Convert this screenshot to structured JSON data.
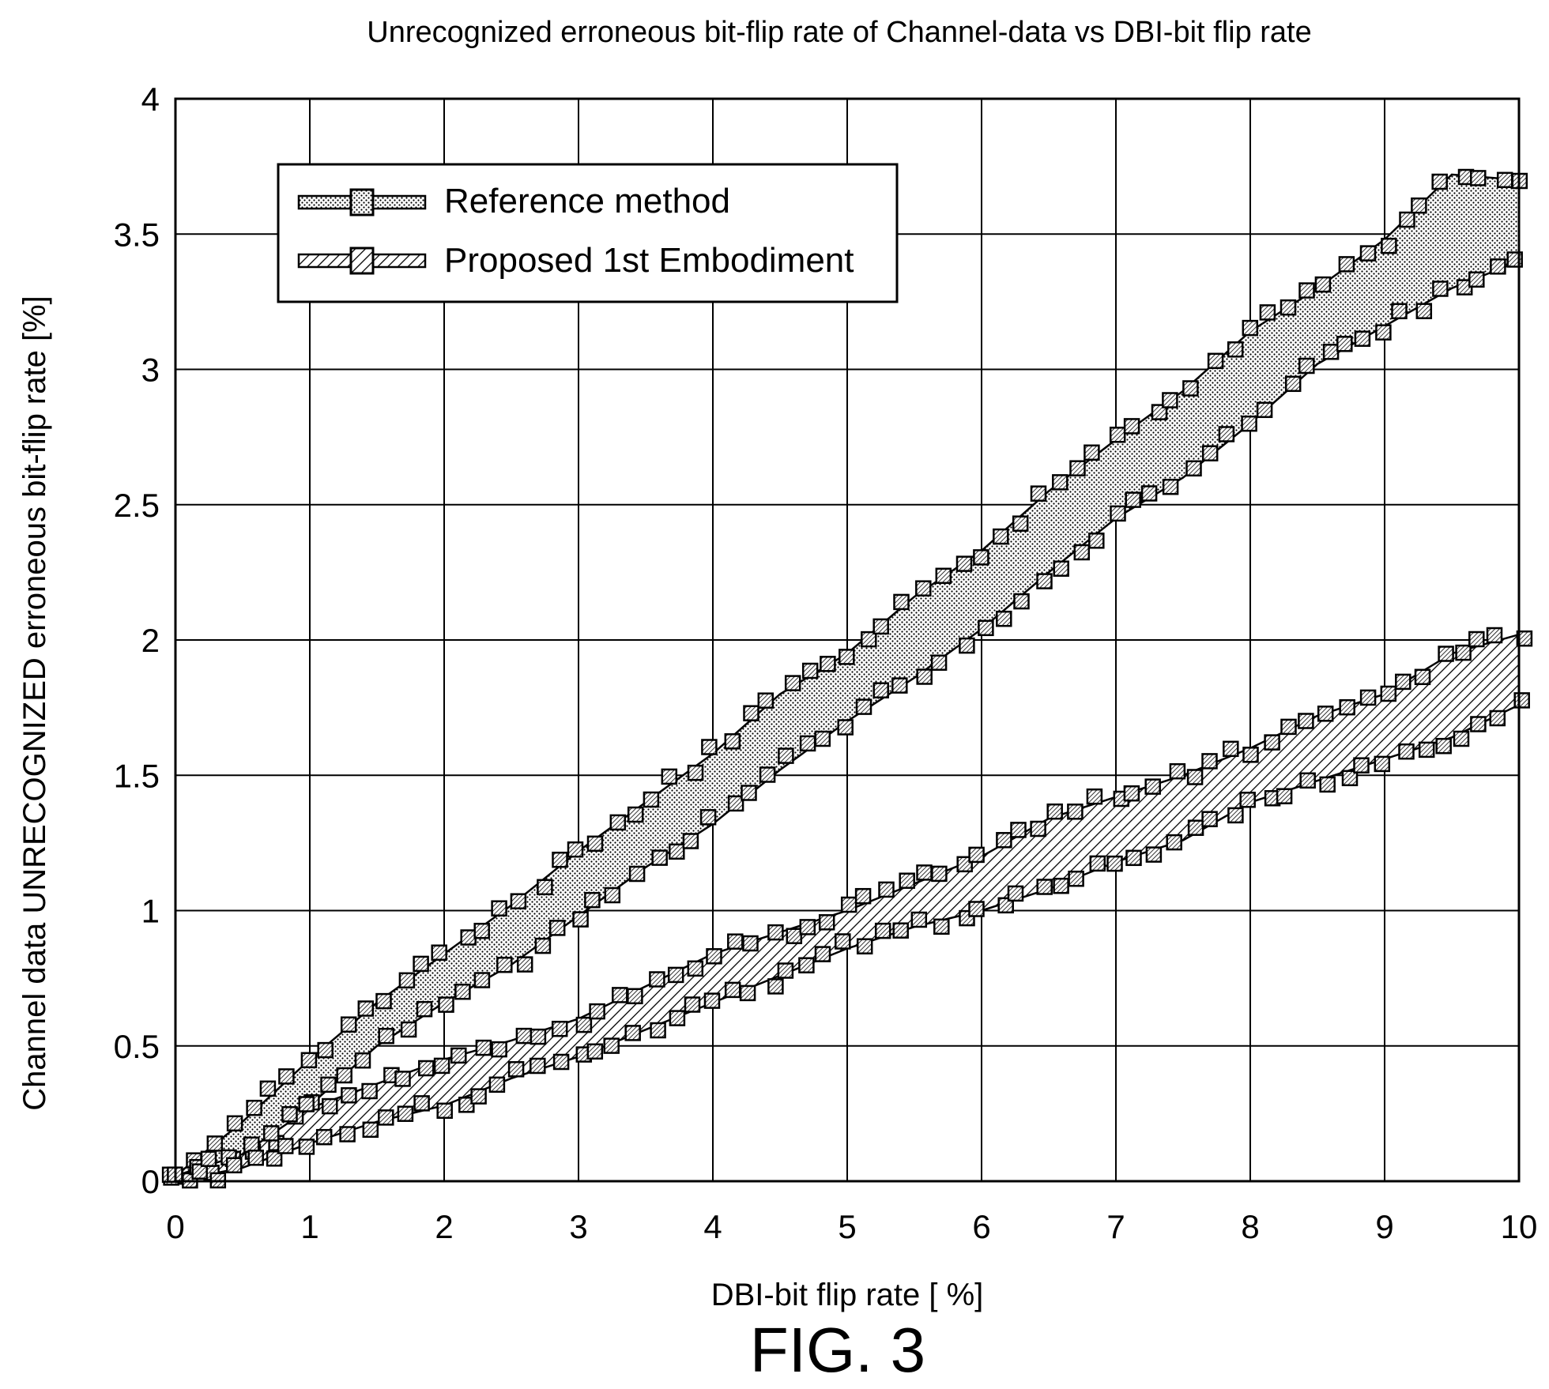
{
  "chart_data": {
    "type": "line",
    "title": "Unrecognized erroneous bit-flip rate of Channel-data vs DBI-bit flip rate",
    "xlabel": "DBI-bit flip rate [ %]",
    "ylabel": "Channel data UNRECOGNIZED erroneous bit-flip rate [%]",
    "xlim": [
      0,
      10
    ],
    "ylim": [
      0,
      4
    ],
    "xticks": [
      "0",
      "1",
      "2",
      "3",
      "4",
      "5",
      "6",
      "7",
      "8",
      "9",
      "10"
    ],
    "yticks": [
      "0",
      "0.5",
      "1",
      "1.5",
      "2",
      "2.5",
      "3",
      "3.5",
      "4"
    ],
    "grid": true,
    "legend_position": "top-left",
    "series": [
      {
        "name": "Reference method",
        "fill": "dotted",
        "x": [
          0,
          0.5,
          1,
          1.5,
          2,
          2.5,
          3,
          3.5,
          4,
          4.5,
          5,
          5.5,
          6,
          6.5,
          7,
          7.5,
          8,
          8.5,
          9,
          9.5,
          10
        ],
        "upper": [
          0.02,
          0.22,
          0.45,
          0.66,
          0.84,
          1.02,
          1.22,
          1.4,
          1.58,
          1.8,
          1.95,
          2.16,
          2.33,
          2.55,
          2.74,
          2.92,
          3.14,
          3.3,
          3.48,
          3.72,
          3.7
        ],
        "lower": [
          0.0,
          0.08,
          0.28,
          0.5,
          0.66,
          0.8,
          0.98,
          1.16,
          1.32,
          1.52,
          1.7,
          1.86,
          2.04,
          2.25,
          2.45,
          2.6,
          2.8,
          3.02,
          3.16,
          3.3,
          3.4
        ]
      },
      {
        "name": "Proposed 1st Embodiment",
        "fill": "hatched",
        "x": [
          0,
          0.5,
          1,
          1.5,
          2,
          2.5,
          3,
          3.5,
          4,
          4.5,
          5,
          5.5,
          6,
          6.5,
          7,
          7.5,
          8,
          8.5,
          9,
          9.5,
          10
        ],
        "upper": [
          0.02,
          0.1,
          0.27,
          0.36,
          0.45,
          0.52,
          0.6,
          0.72,
          0.84,
          0.92,
          1.0,
          1.1,
          1.2,
          1.34,
          1.42,
          1.5,
          1.6,
          1.72,
          1.8,
          1.95,
          2.02
        ],
        "lower": [
          0.0,
          0.05,
          0.14,
          0.22,
          0.28,
          0.38,
          0.46,
          0.56,
          0.66,
          0.76,
          0.86,
          0.94,
          1.0,
          1.08,
          1.18,
          1.26,
          1.4,
          1.48,
          1.56,
          1.64,
          1.76
        ]
      }
    ]
  },
  "caption": "FIG. 3",
  "colors": {
    "ink": "#000000",
    "grid": "#000000",
    "reference_fill": "#d9d9d9",
    "background": "#ffffff"
  }
}
